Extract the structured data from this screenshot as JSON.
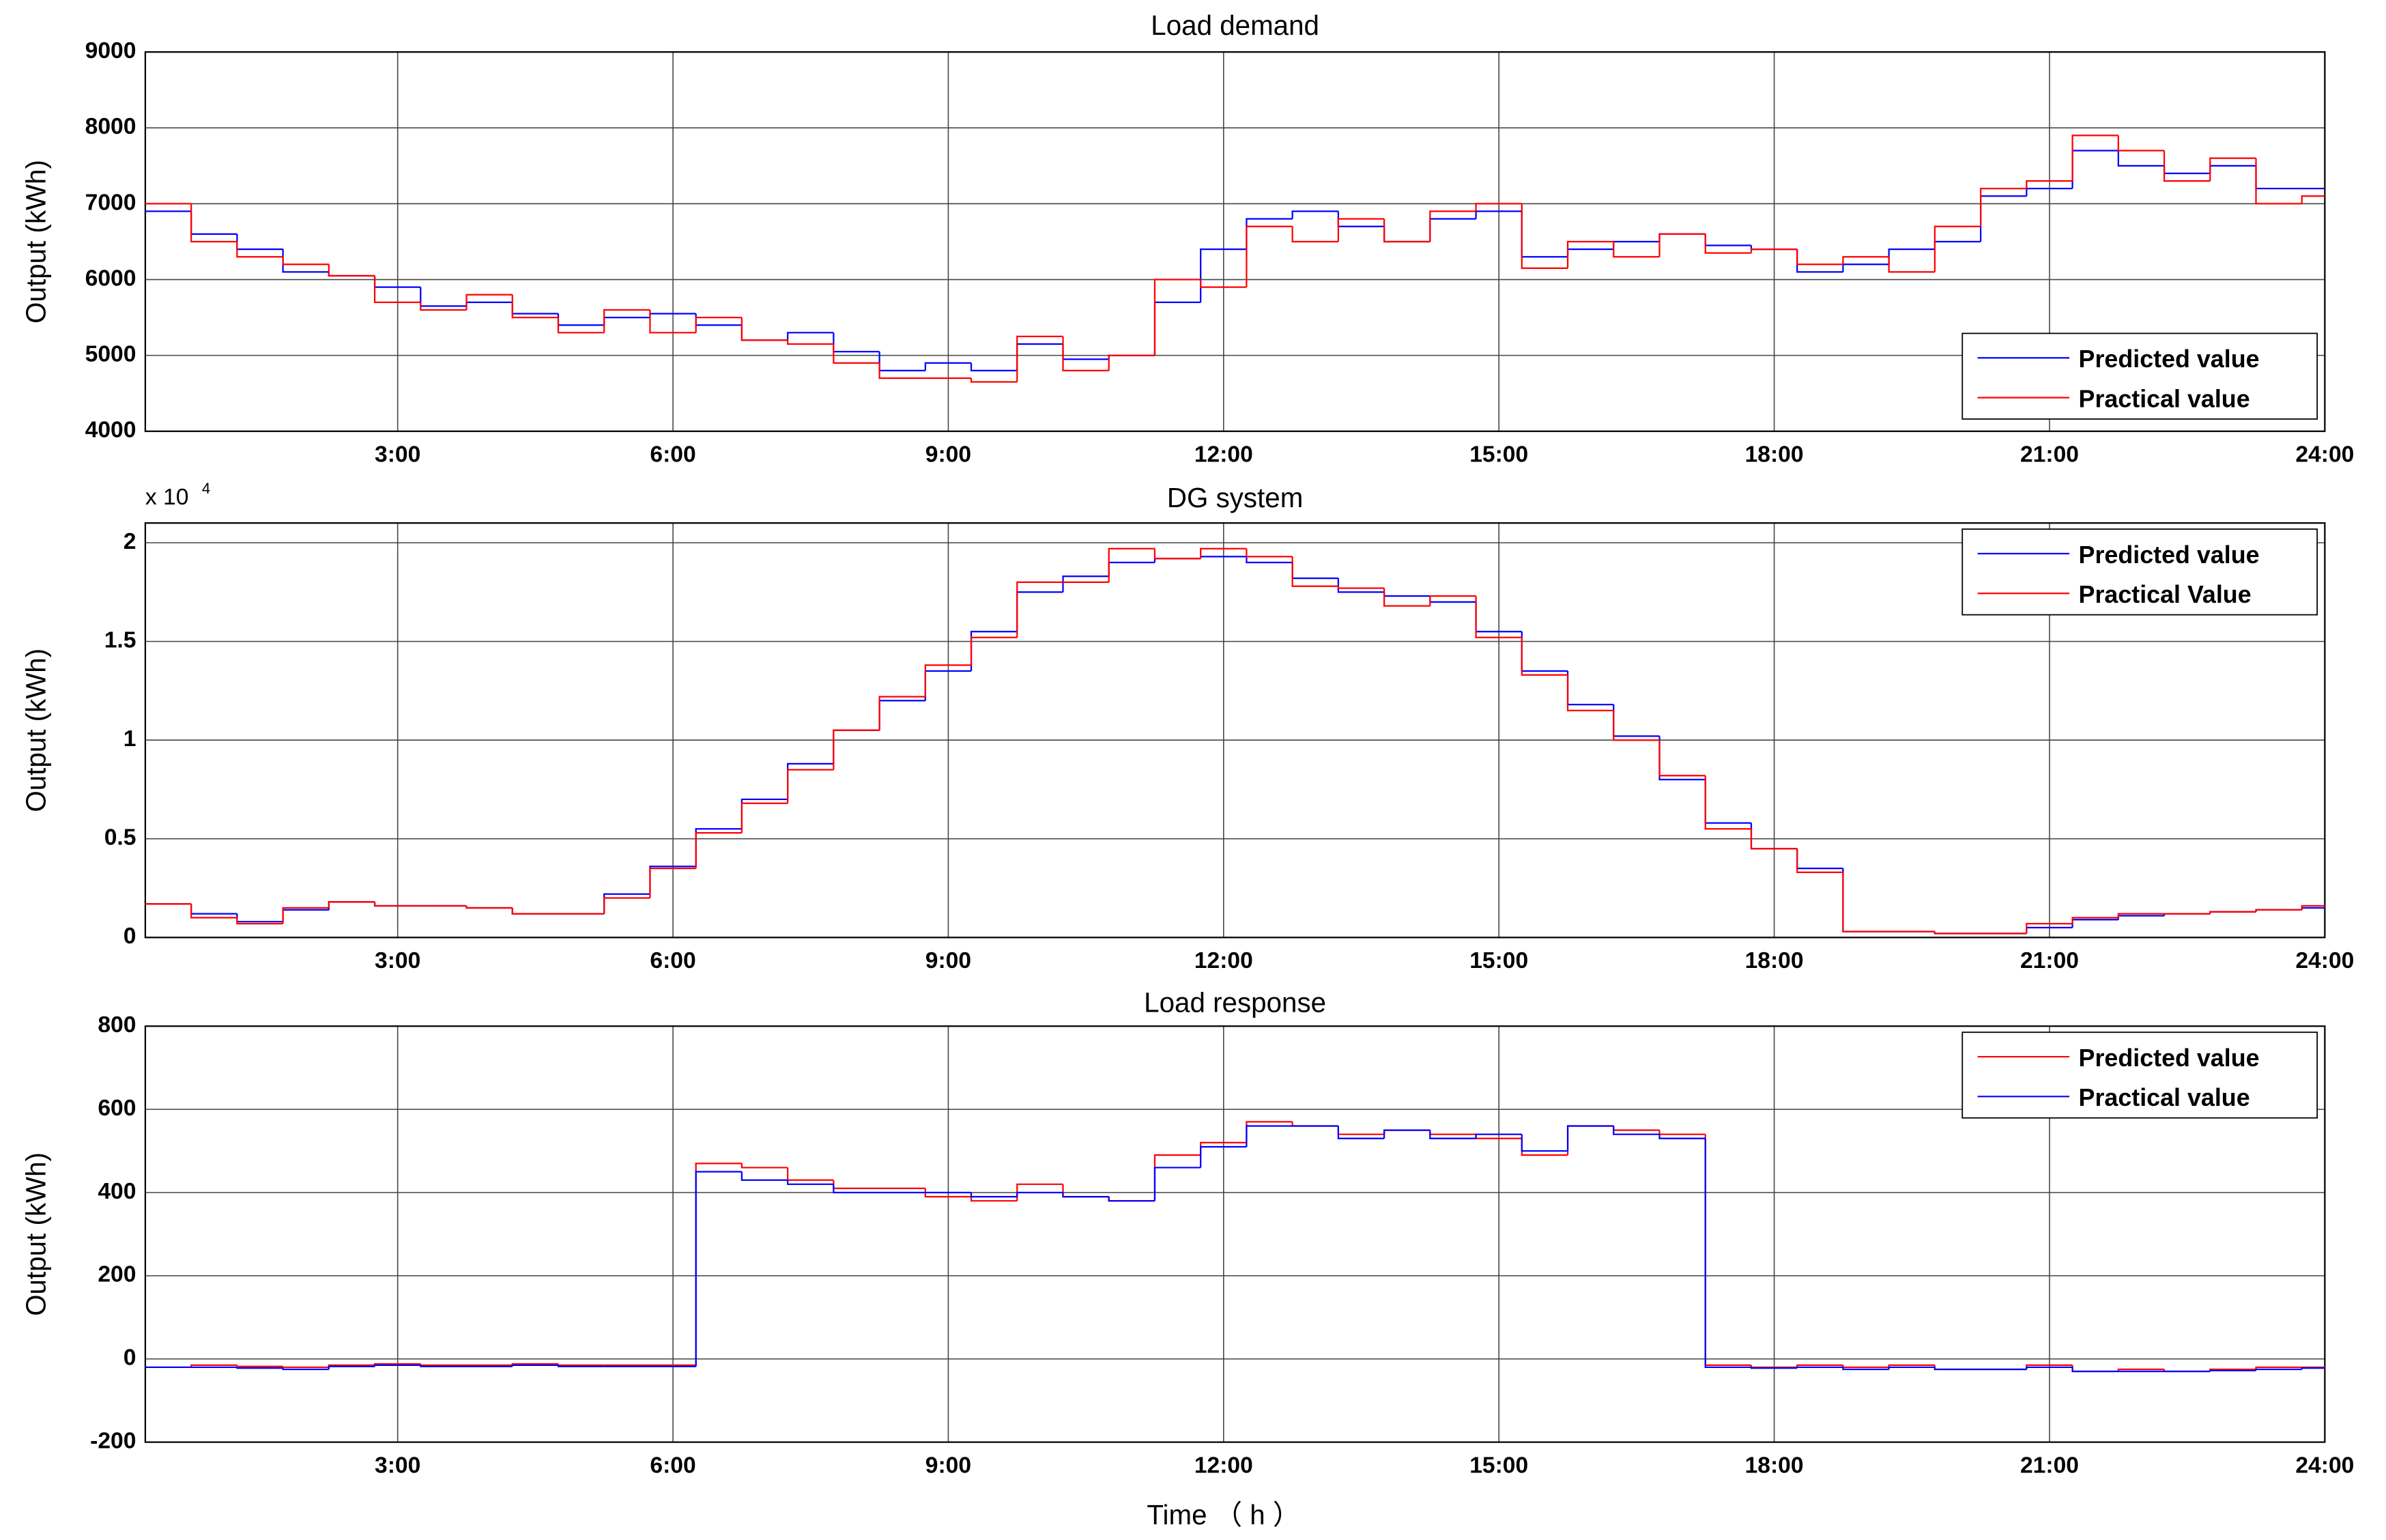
{
  "xlabel": "Time （ h ）",
  "chart_data": [
    {
      "type": "line",
      "step": true,
      "title": "Load demand",
      "ylabel": "Output (kWh)",
      "xlim": [
        0.25,
        24
      ],
      "xticks": [
        {
          "value": 3,
          "label": "3:00"
        },
        {
          "value": 6,
          "label": "6:00"
        },
        {
          "value": 9,
          "label": "9:00"
        },
        {
          "value": 12,
          "label": "12:00"
        },
        {
          "value": 15,
          "label": "15:00"
        },
        {
          "value": 18,
          "label": "18:00"
        },
        {
          "value": 21,
          "label": "21:00"
        },
        {
          "value": 24,
          "label": "24:00"
        }
      ],
      "ylim": [
        4000,
        9000
      ],
      "yticks": [
        4000,
        5000,
        6000,
        7000,
        8000,
        9000
      ],
      "grid": true,
      "legend": "lower right",
      "x": [
        0.25,
        0.75,
        1.25,
        1.75,
        2.25,
        2.75,
        3.25,
        3.75,
        4.25,
        4.75,
        5.25,
        5.75,
        6.25,
        6.75,
        7.25,
        7.75,
        8.25,
        8.75,
        9.25,
        9.75,
        10.25,
        10.75,
        11.25,
        11.75,
        12.25,
        12.75,
        13.25,
        13.75,
        14.25,
        14.75,
        15.25,
        15.75,
        16.25,
        16.75,
        17.25,
        17.75,
        18.25,
        18.75,
        19.25,
        19.75,
        20.25,
        20.75,
        21.25,
        21.75,
        22.25,
        22.75,
        23.25,
        23.75
      ],
      "series": [
        {
          "name": "Predicted value",
          "color": "#0000ff",
          "values": [
            6900,
            6600,
            6400,
            6100,
            6050,
            5900,
            5650,
            5700,
            5550,
            5400,
            5500,
            5550,
            5400,
            5200,
            5300,
            5050,
            4800,
            4900,
            4800,
            5150,
            4950,
            5000,
            5700,
            6400,
            6800,
            6900,
            6700,
            6500,
            6800,
            6900,
            6300,
            6400,
            6500,
            6600,
            6450,
            6400,
            6100,
            6200,
            6400,
            6500,
            7100,
            7200,
            7700,
            7500,
            7400,
            7500,
            7200,
            7200
          ]
        },
        {
          "name": "Practical value",
          "color": "#ff0000",
          "values": [
            7000,
            6500,
            6300,
            6200,
            6050,
            5700,
            5600,
            5800,
            5500,
            5300,
            5600,
            5300,
            5500,
            5200,
            5150,
            4900,
            4700,
            4700,
            4650,
            5250,
            4800,
            5000,
            6000,
            5900,
            6700,
            6500,
            6800,
            6500,
            6900,
            7000,
            6150,
            6500,
            6300,
            6600,
            6350,
            6400,
            6200,
            6300,
            6100,
            6700,
            7200,
            7300,
            7900,
            7700,
            7300,
            7600,
            7000,
            7100
          ]
        }
      ]
    },
    {
      "type": "line",
      "step": true,
      "title": "DG system",
      "ylabel": "Output (kWh)",
      "multiplier": "x 10",
      "multiplier_exponent": "4",
      "xlim": [
        0.25,
        24
      ],
      "xticks": [
        {
          "value": 3,
          "label": "3:00"
        },
        {
          "value": 6,
          "label": "6:00"
        },
        {
          "value": 9,
          "label": "9:00"
        },
        {
          "value": 12,
          "label": "12:00"
        },
        {
          "value": 15,
          "label": "15:00"
        },
        {
          "value": 18,
          "label": "18:00"
        },
        {
          "value": 21,
          "label": "21:00"
        },
        {
          "value": 24,
          "label": "24:00"
        }
      ],
      "ylim": [
        0,
        2.1
      ],
      "yticks": [
        0,
        0.5,
        1,
        1.5,
        2
      ],
      "grid": true,
      "legend": "upper right",
      "x": [
        0.25,
        0.75,
        1.25,
        1.75,
        2.25,
        2.75,
        3.25,
        3.75,
        4.25,
        4.75,
        5.25,
        5.75,
        6.25,
        6.75,
        7.25,
        7.75,
        8.25,
        8.75,
        9.25,
        9.75,
        10.25,
        10.75,
        11.25,
        11.75,
        12.25,
        12.75,
        13.25,
        13.75,
        14.25,
        14.75,
        15.25,
        15.75,
        16.25,
        16.75,
        17.25,
        17.75,
        18.25,
        18.75,
        19.25,
        19.75,
        20.25,
        20.75,
        21.25,
        21.75,
        22.25,
        22.75,
        23.25,
        23.75
      ],
      "series": [
        {
          "name": "Predicted value",
          "color": "#0000ff",
          "values": [
            0.17,
            0.12,
            0.08,
            0.14,
            0.18,
            0.16,
            0.16,
            0.15,
            0.12,
            0.12,
            0.22,
            0.36,
            0.55,
            0.7,
            0.88,
            1.05,
            1.2,
            1.35,
            1.55,
            1.75,
            1.83,
            1.9,
            1.92,
            1.93,
            1.9,
            1.82,
            1.75,
            1.73,
            1.7,
            1.55,
            1.35,
            1.18,
            1.02,
            0.8,
            0.58,
            0.45,
            0.35,
            0.03,
            0.03,
            0.02,
            0.02,
            0.05,
            0.09,
            0.11,
            0.12,
            0.13,
            0.14,
            0.15
          ]
        },
        {
          "name": "Practical Value",
          "color": "#ff0000",
          "values": [
            0.17,
            0.1,
            0.07,
            0.15,
            0.18,
            0.16,
            0.16,
            0.15,
            0.12,
            0.12,
            0.2,
            0.35,
            0.53,
            0.68,
            0.85,
            1.05,
            1.22,
            1.38,
            1.52,
            1.8,
            1.8,
            1.97,
            1.92,
            1.97,
            1.93,
            1.78,
            1.77,
            1.68,
            1.73,
            1.52,
            1.33,
            1.15,
            1.0,
            0.82,
            0.55,
            0.45,
            0.33,
            0.03,
            0.03,
            0.02,
            0.02,
            0.07,
            0.1,
            0.12,
            0.12,
            0.13,
            0.14,
            0.16
          ]
        }
      ]
    },
    {
      "type": "line",
      "step": true,
      "title": "Load response",
      "ylabel": "Output (kWh)",
      "xlim": [
        0.25,
        24
      ],
      "xticks": [
        {
          "value": 3,
          "label": "3:00"
        },
        {
          "value": 6,
          "label": "6:00"
        },
        {
          "value": 9,
          "label": "9:00"
        },
        {
          "value": 12,
          "label": "12:00"
        },
        {
          "value": 15,
          "label": "15:00"
        },
        {
          "value": 18,
          "label": "18:00"
        },
        {
          "value": 21,
          "label": "21:00"
        },
        {
          "value": 24,
          "label": "24:00"
        }
      ],
      "ylim": [
        -200,
        800
      ],
      "yticks": [
        -200,
        0,
        200,
        400,
        600,
        800
      ],
      "grid": true,
      "legend": "upper right",
      "x": [
        0.25,
        0.75,
        1.25,
        1.75,
        2.25,
        2.75,
        3.25,
        3.75,
        4.25,
        4.75,
        5.25,
        5.75,
        6.25,
        6.75,
        7.25,
        7.75,
        8.25,
        8.75,
        9.25,
        9.75,
        10.25,
        10.75,
        11.25,
        11.75,
        12.25,
        12.75,
        13.25,
        13.75,
        14.25,
        14.75,
        15.25,
        15.75,
        16.25,
        16.75,
        17.25,
        17.75,
        18.25,
        18.75,
        19.25,
        19.75,
        20.25,
        20.75,
        21.25,
        21.75,
        22.25,
        22.75,
        23.25,
        23.75
      ],
      "series": [
        {
          "name": "Predicted value",
          "color": "#ff0000",
          "values": [
            -20,
            -15,
            -18,
            -20,
            -15,
            -12,
            -15,
            -15,
            -12,
            -15,
            -15,
            -15,
            470,
            460,
            430,
            410,
            410,
            390,
            380,
            420,
            390,
            380,
            490,
            520,
            570,
            560,
            540,
            550,
            540,
            530,
            490,
            560,
            550,
            540,
            -15,
            -20,
            -15,
            -20,
            -15,
            -25,
            -25,
            -15,
            -30,
            -25,
            -30,
            -25,
            -20,
            -20
          ]
        },
        {
          "name": "Practical value",
          "color": "#0000ff",
          "values": [
            -20,
            -20,
            -22,
            -25,
            -18,
            -15,
            -18,
            -18,
            -15,
            -18,
            -18,
            -18,
            450,
            430,
            420,
            400,
            400,
            400,
            390,
            400,
            390,
            380,
            460,
            510,
            560,
            560,
            530,
            550,
            530,
            540,
            500,
            560,
            540,
            530,
            -20,
            -22,
            -20,
            -25,
            -20,
            -25,
            -25,
            -20,
            -30,
            -30,
            -30,
            -28,
            -25,
            -22
          ]
        }
      ]
    }
  ]
}
